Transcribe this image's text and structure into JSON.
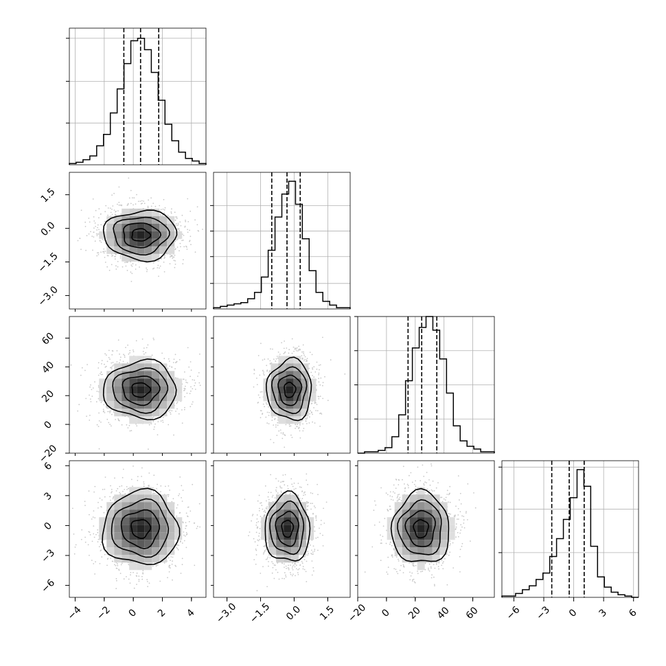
{
  "chart_data": {
    "type": "corner",
    "n_params": 4,
    "params": [
      {
        "index": 0,
        "range": [
          -4.4,
          5.0
        ],
        "ticks": [
          -4,
          -2,
          0,
          2,
          4
        ],
        "tick_labels": [
          "−4",
          "−2",
          "0",
          "2",
          "4"
        ],
        "quantiles": [
          -0.65,
          0.5,
          1.75
        ],
        "hist": {
          "x0": -4.4,
          "x1": 5.0,
          "counts": [
            1,
            2,
            4,
            7,
            15,
            24,
            41,
            60,
            80,
            98,
            100,
            91,
            73,
            51,
            32,
            19,
            10,
            5,
            3,
            1
          ],
          "y_max": 108,
          "y_ticks": [
            33,
            66,
            100
          ]
        },
        "peak": 0.5
      },
      {
        "index": 1,
        "range": [
          -3.6,
          2.5
        ],
        "ticks": [
          -3.0,
          -1.5,
          0.0,
          1.5
        ],
        "tick_labels": [
          "−3.0",
          "−1.5",
          "0.0",
          "1.5"
        ],
        "quantiles": [
          -1.0,
          -0.32,
          0.27
        ],
        "hist": {
          "x0": -3.6,
          "x1": 2.5,
          "counts": [
            1,
            2,
            3,
            4,
            5,
            8,
            13,
            25,
            46,
            72,
            90,
            100,
            82,
            55,
            30,
            13,
            6,
            3,
            1,
            1
          ],
          "y_max": 107,
          "y_ticks": [
            20,
            41,
            61,
            81
          ]
        },
        "peak": -0.3
      },
      {
        "index": 2,
        "range": [
          -20,
          75
        ],
        "ticks": [
          -20,
          0,
          20,
          40,
          60
        ],
        "tick_labels": [
          "−20",
          "0",
          "20",
          "40",
          "60"
        ],
        "quantiles": [
          15,
          24.5,
          35
        ],
        "hist": {
          "x0": -20,
          "x1": 75,
          "counts": [
            0,
            1,
            1,
            2,
            4,
            12,
            28,
            53,
            77,
            92,
            100,
            90,
            69,
            44,
            20,
            9,
            5,
            3,
            1,
            1
          ],
          "y_max": 100,
          "y_ticks": [
            25,
            50,
            75,
            100
          ]
        },
        "peak": 24.5
      },
      {
        "index": 3,
        "range": [
          -7.2,
          6.5
        ],
        "ticks": [
          -6,
          -3,
          0,
          3,
          6
        ],
        "tick_labels": [
          "−6",
          "−3",
          "0",
          "3",
          "6"
        ],
        "quantiles": [
          -2.2,
          -0.45,
          1.05
        ],
        "hist": {
          "x0": -7.2,
          "x1": 6.5,
          "counts": [
            1,
            1,
            3,
            6,
            9,
            14,
            19,
            32,
            46,
            61,
            78,
            100,
            87,
            40,
            16,
            8,
            4,
            2,
            1,
            0
          ],
          "y_max": 107,
          "y_ticks": [
            35,
            69,
            102
          ]
        },
        "peak": -0.4
      }
    ],
    "blobs": [
      {
        "row": 1,
        "col": 0,
        "center": [
          0.5,
          -0.3
        ],
        "sx": 1.25,
        "sy": 0.55
      },
      {
        "row": 2,
        "col": 0,
        "center": [
          0.5,
          24.0
        ],
        "sx": 1.25,
        "sy": 10.0
      },
      {
        "row": 2,
        "col": 1,
        "center": [
          -0.2,
          24.0
        ],
        "sx": 0.5,
        "sy": 10.5
      },
      {
        "row": 3,
        "col": 0,
        "center": [
          0.5,
          -0.3
        ],
        "sx": 1.3,
        "sy": 1.85
      },
      {
        "row": 3,
        "col": 1,
        "center": [
          -0.3,
          -0.3
        ],
        "sx": 0.5,
        "sy": 1.7
      },
      {
        "row": 3,
        "col": 2,
        "center": [
          24.0,
          -0.3
        ],
        "sx": 10.0,
        "sy": 1.8
      }
    ],
    "grid": true,
    "colors": {
      "line": "#000000",
      "grid": "#b0b0b0",
      "scatter": "#c8c8c8"
    }
  }
}
